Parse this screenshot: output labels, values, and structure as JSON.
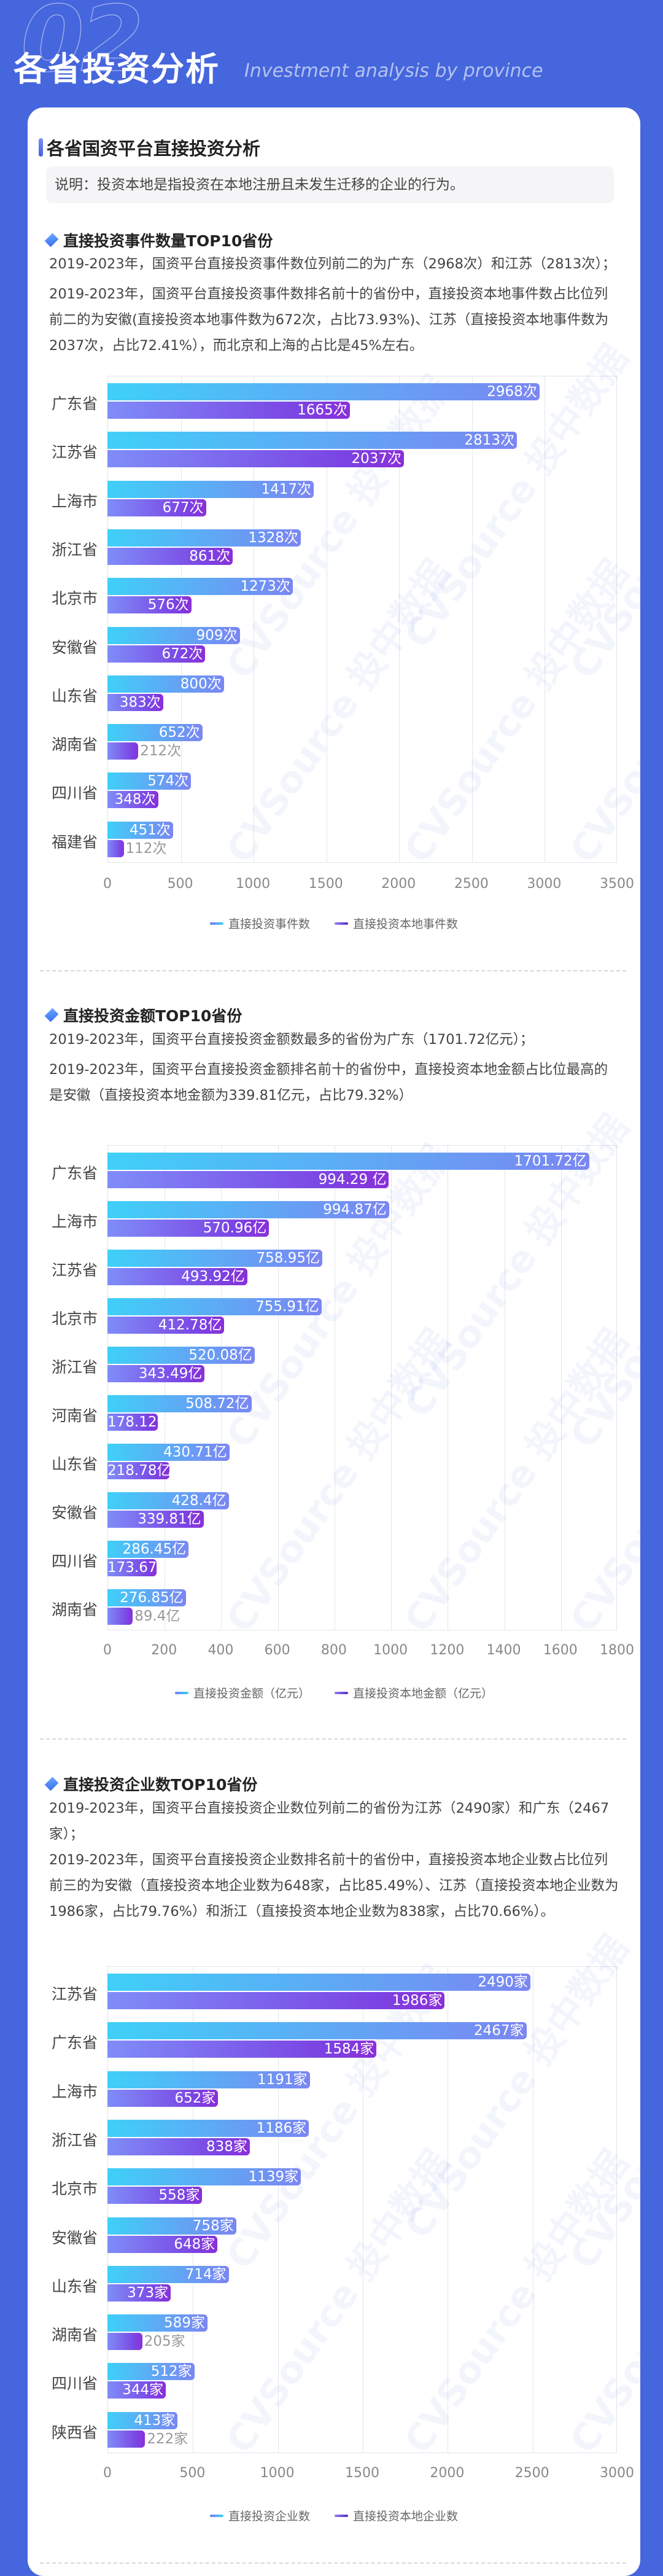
{
  "hero": {
    "number": "02",
    "title": "各省投资分析",
    "subtitle": "Investment analysis by province"
  },
  "section": {
    "title": "各省国资平台直接投资分析",
    "note": "说明：投资本地是指投资在本地注册且未发生迁移的企业的行为。"
  },
  "colors": {
    "background": "#4566dc",
    "series_total": "#4fc3f7",
    "series_local": "#7b43e3"
  },
  "blocks": [
    {
      "heading": "直接投资事件数量TOP10省份",
      "paragraphs": [
        "2019-2023年，国资平台直接投资事件数位列前二的为广东（2968次）和江苏（2813次）；",
        "2019-2023年，国资平台直接投资事件数排名前十的省份中，直接投资本地事件数占比位列前二的为安徽(直接投资本地事件数为672次，占比73.93%)、江苏（直接投资本地事件数为2037次，占比72.41%），而北京和上海的占比是45%左右。"
      ],
      "legend": [
        "直接投资事件数",
        "直接投资本地事件数"
      ]
    },
    {
      "heading": "直接投资金额TOP10省份",
      "paragraphs": [
        "2019-2023年，国资平台直接投资金额数最多的省份为广东（1701.72亿元）；",
        "2019-2023年，国资平台直接投资金额排名前十的省份中，直接投资本地金额占比位最高的是安徽（直接投资本地金额为339.81亿元，占比79.32%）"
      ],
      "legend": [
        "直接投资金额（亿元）",
        "直接投资本地金额（亿元）"
      ]
    },
    {
      "heading": "直接投资企业数TOP10省份",
      "paragraphs": [
        "2019-2023年，国资平台直接投资企业数位列前二的省份为江苏（2490家）和广东（2467家）；",
        "2019-2023年，国资平台直接投资企业数排名前十的省份中，直接投资本地企业数占比位列前三的为安徽（直接投资本地企业数为648家，占比85.49%）、江苏（直接投资本地企业数为1986家，占比79.76%）和浙江（直接投资本地企业数为838家，占比70.66%）。"
      ],
      "legend": [
        "直接投资企业数",
        "直接投资本地企业数"
      ]
    }
  ],
  "watermark": "CVSource 投中数据",
  "chart_data": [
    {
      "type": "bar",
      "orientation": "horizontal",
      "title": "直接投资事件数量TOP10省份",
      "categories": [
        "广东省",
        "江苏省",
        "上海市",
        "浙江省",
        "北京市",
        "安徽省",
        "山东省",
        "湖南省",
        "四川省",
        "福建省"
      ],
      "series": [
        {
          "name": "直接投资事件数",
          "values": [
            2968,
            2813,
            1417,
            1328,
            1273,
            909,
            800,
            652,
            574,
            451
          ],
          "labels": [
            "2968次",
            "2813次",
            "1417次",
            "1328次",
            "1273次",
            "909次",
            "800次",
            "652次",
            "574次",
            "451次"
          ]
        },
        {
          "name": "直接投资本地事件数",
          "values": [
            1665,
            2037,
            677,
            861,
            576,
            672,
            383,
            212,
            348,
            112
          ],
          "labels": [
            "1665次",
            "2037次",
            "677次",
            "861次",
            "576次",
            "672次",
            "383次",
            "212次",
            "348次",
            "112次"
          ]
        }
      ],
      "xticks": [
        "0",
        "500",
        "1000",
        "1500",
        "2000",
        "2500",
        "3000",
        "3500"
      ],
      "xlim": [
        0,
        3500
      ],
      "grid": true,
      "legend_position": "bottom"
    },
    {
      "type": "bar",
      "orientation": "horizontal",
      "title": "直接投资金额TOP10省份",
      "categories": [
        "广东省",
        "上海市",
        "江苏省",
        "北京市",
        "浙江省",
        "河南省",
        "山东省",
        "安徽省",
        "四川省",
        "湖南省"
      ],
      "series": [
        {
          "name": "直接投资金额（亿元）",
          "values": [
            1701.72,
            994.87,
            758.95,
            755.91,
            520.08,
            508.72,
            430.71,
            428.4,
            286.45,
            276.85
          ],
          "labels": [
            "1701.72亿",
            "994.87亿",
            "758.95亿",
            "755.91亿",
            "520.08亿",
            "508.72亿",
            "430.71亿",
            "428.4亿",
            "286.45亿",
            "276.85亿"
          ]
        },
        {
          "name": "直接投资本地金额（亿元）",
          "values": [
            994.29,
            570.96,
            493.92,
            412.78,
            343.49,
            178.12,
            218.78,
            339.81,
            173.67,
            89.4
          ],
          "labels": [
            "994.29 亿",
            "570.96亿",
            "493.92亿",
            "412.78亿",
            "343.49亿",
            "178.12亿",
            "218.78亿",
            "339.81亿",
            "173.67亿",
            "89.4亿"
          ]
        }
      ],
      "xticks": [
        "0",
        "200",
        "400",
        "600",
        "800",
        "1000",
        "1200",
        "1400",
        "1600",
        "1800"
      ],
      "xlim": [
        0,
        1800
      ],
      "grid": true,
      "legend_position": "bottom"
    },
    {
      "type": "bar",
      "orientation": "horizontal",
      "title": "直接投资企业数TOP10省份",
      "categories": [
        "江苏省",
        "广东省",
        "上海市",
        "浙江省",
        "北京市",
        "安徽省",
        "山东省",
        "湖南省",
        "四川省",
        "陕西省"
      ],
      "series": [
        {
          "name": "直接投资企业数",
          "values": [
            2490,
            2467,
            1191,
            1186,
            1139,
            758,
            714,
            589,
            512,
            413
          ],
          "labels": [
            "2490家",
            "2467家",
            "1191家",
            "1186家",
            "1139家",
            "758家",
            "714家",
            "589家",
            "512家",
            "413家"
          ]
        },
        {
          "name": "直接投资本地企业数",
          "values": [
            1986,
            1584,
            652,
            838,
            558,
            648,
            373,
            205,
            344,
            222
          ],
          "labels": [
            "1986家",
            "1584家",
            "652家",
            "838家",
            "558家",
            "648家",
            "373家",
            "205家",
            "344家",
            "222家"
          ]
        }
      ],
      "xticks": [
        "0",
        "500",
        "1000",
        "1500",
        "2000",
        "2500",
        "3000"
      ],
      "xlim": [
        0,
        3000
      ],
      "grid": true,
      "legend_position": "bottom"
    }
  ]
}
